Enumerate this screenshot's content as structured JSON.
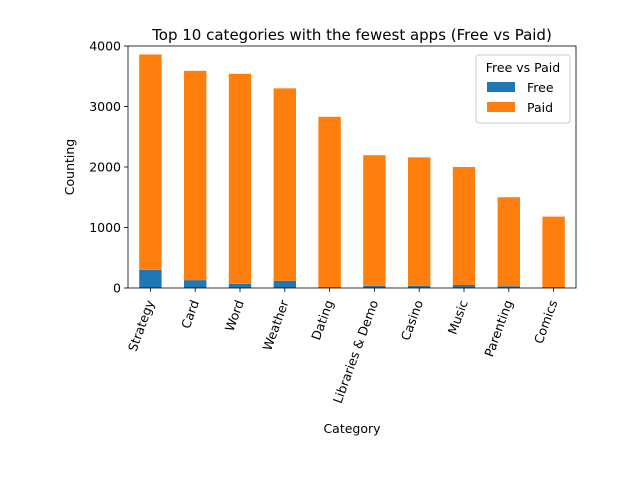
{
  "chart_data": {
    "type": "bar",
    "stacked": true,
    "title": "Top 10 categories with the fewest apps (Free vs Paid)",
    "xlabel": "Category",
    "ylabel": "Counting",
    "categories": [
      "Strategy",
      "Card",
      "Word",
      "Weather",
      "Dating",
      "Libraries & Demo",
      "Casino",
      "Music",
      "Parenting",
      "Comics"
    ],
    "series": [
      {
        "name": "Free",
        "color": "#1f77b4",
        "values": [
          300,
          130,
          70,
          120,
          15,
          35,
          35,
          50,
          30,
          15
        ]
      },
      {
        "name": "Paid",
        "color": "#ff7f0e",
        "values": [
          3560,
          3460,
          3470,
          3180,
          2815,
          2160,
          2125,
          1950,
          1470,
          1165
        ]
      }
    ],
    "ylim": [
      0,
      4000
    ],
    "yticks": [
      0,
      1000,
      2000,
      3000,
      4000
    ],
    "legend": {
      "title": "Free vs Paid",
      "placement": "top-right"
    },
    "grid": false
  }
}
